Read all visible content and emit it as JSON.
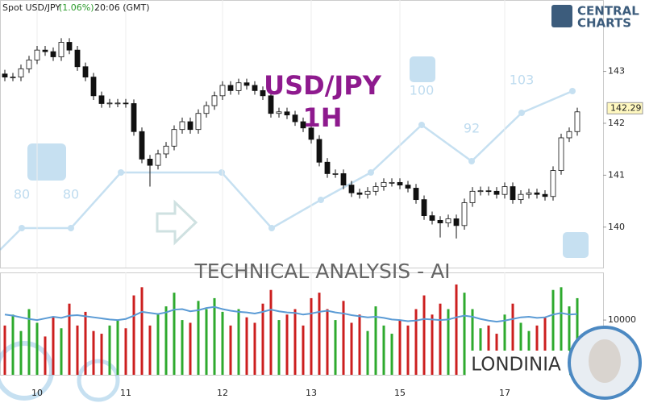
{
  "header": {
    "symbol": "Spot USD/JPY",
    "change": "(1.06%)",
    "time": "20:06 (GMT)"
  },
  "logo": {
    "line1": "CENTRAL",
    "line2": "CHARTS"
  },
  "watermark": {
    "pair": "USD/JPY",
    "timeframe": "1H",
    "caption": "TECHNICAL  ANALYSIS - AI",
    "brand": "LONDINIA",
    "numbers": [
      "80",
      "80",
      "100",
      "92",
      "103"
    ]
  },
  "chart_data": {
    "type": "candlestick",
    "open": [
      142.95,
      142.89,
      142.89,
      143.05,
      143.22,
      143.41,
      143.38,
      143.28,
      143.56,
      143.41,
      143.09,
      142.89,
      142.53,
      142.38,
      142.39,
      142.39,
      142.38,
      141.84,
      141.31,
      141.19,
      141.41,
      141.56,
      141.88,
      142.03,
      141.88,
      142.19,
      142.34,
      142.53,
      142.73,
      142.63,
      142.78,
      142.73,
      142.63,
      142.53,
      142.19,
      142.22,
      142.16,
      142.03,
      141.91,
      141.69,
      141.25,
      141.03,
      141.03,
      140.81,
      140.66,
      140.63,
      140.69,
      140.78,
      140.86,
      140.86,
      140.81,
      140.75,
      140.53,
      140.22,
      140.13,
      140.08,
      140.16,
      140.03,
      140.47,
      140.69,
      140.7,
      140.69,
      140.63,
      140.78,
      140.53,
      140.63,
      140.66,
      140.63,
      140.59,
      141.09,
      141.72,
      141.84
    ],
    "high": [
      143.03,
      142.97,
      143.13,
      143.3,
      143.49,
      143.49,
      143.46,
      143.64,
      143.64,
      143.49,
      143.17,
      142.97,
      142.61,
      142.47,
      142.47,
      142.47,
      142.46,
      141.92,
      141.39,
      141.49,
      141.64,
      141.96,
      142.11,
      142.11,
      142.27,
      142.42,
      142.61,
      142.81,
      142.81,
      142.86,
      142.86,
      142.81,
      142.71,
      142.61,
      142.3,
      142.3,
      142.24,
      142.11,
      141.99,
      141.77,
      141.33,
      141.11,
      141.11,
      140.89,
      140.74,
      140.77,
      140.86,
      140.94,
      140.94,
      140.94,
      140.89,
      140.83,
      140.61,
      140.3,
      140.21,
      140.24,
      140.24,
      140.55,
      140.77,
      140.78,
      140.78,
      140.77,
      140.86,
      140.86,
      140.71,
      140.74,
      140.74,
      140.71,
      141.17,
      141.8,
      141.92,
      142.3
    ],
    "low": [
      142.81,
      142.81,
      142.81,
      142.97,
      143.14,
      143.3,
      143.2,
      143.2,
      143.33,
      143.01,
      142.81,
      142.45,
      142.3,
      142.3,
      142.31,
      142.3,
      141.76,
      141.23,
      140.78,
      141.11,
      141.33,
      141.48,
      141.8,
      141.8,
      141.8,
      142.11,
      142.26,
      142.45,
      142.55,
      142.55,
      142.65,
      142.55,
      142.45,
      142.11,
      142.11,
      142.08,
      141.95,
      141.83,
      141.61,
      141.17,
      140.95,
      140.95,
      140.73,
      140.58,
      140.55,
      140.55,
      140.61,
      140.7,
      140.78,
      140.73,
      140.67,
      140.45,
      140.14,
      140.05,
      139.8,
      140.0,
      139.78,
      139.95,
      140.39,
      140.61,
      140.61,
      140.55,
      140.55,
      140.45,
      140.45,
      140.55,
      140.55,
      140.51,
      140.51,
      141.01,
      141.64,
      141.76
    ],
    "close": [
      142.89,
      142.89,
      143.05,
      143.22,
      143.41,
      143.38,
      143.28,
      143.56,
      143.41,
      143.09,
      142.89,
      142.53,
      142.38,
      142.39,
      142.39,
      142.38,
      141.84,
      141.31,
      141.19,
      141.41,
      141.56,
      141.88,
      142.03,
      141.88,
      142.19,
      142.34,
      142.53,
      142.73,
      142.63,
      142.78,
      142.73,
      142.63,
      142.53,
      142.19,
      142.22,
      142.16,
      142.03,
      141.91,
      141.69,
      141.25,
      141.03,
      141.03,
      140.81,
      140.66,
      140.63,
      140.69,
      140.78,
      140.86,
      140.86,
      140.81,
      140.75,
      140.53,
      140.22,
      140.13,
      140.08,
      140.16,
      140.03,
      140.47,
      140.69,
      140.7,
      140.69,
      140.63,
      140.78,
      140.53,
      140.63,
      140.66,
      140.63,
      140.59,
      141.09,
      141.72,
      141.84,
      142.22
    ],
    "volume": [
      9000,
      11000,
      8000,
      12000,
      9500,
      7000,
      10500,
      8500,
      13000,
      9000,
      11500,
      8000,
      7500,
      9000,
      10000,
      8500,
      14500,
      16000,
      9000,
      11000,
      12500,
      15000,
      10000,
      9500,
      13500,
      12000,
      14000,
      11500,
      9000,
      12000,
      10500,
      9500,
      13000,
      15500,
      10000,
      11000,
      12000,
      9000,
      14000,
      15000,
      12000,
      10000,
      13500,
      9500,
      11000,
      8000,
      12500,
      9000,
      7500,
      10000,
      9000,
      12000,
      14500,
      11000,
      13000,
      12000,
      16500,
      15000,
      12000,
      8500,
      9000,
      7500,
      11000,
      13000,
      9500,
      8000,
      9000,
      10500,
      15500,
      16000,
      12500,
      14000
    ],
    "volume_ma": [
      11000,
      10800,
      10500,
      10200,
      10000,
      10300,
      10600,
      10400,
      10800,
      10900,
      10700,
      10500,
      10300,
      10100,
      10000,
      10200,
      10800,
      11500,
      11300,
      11100,
      11400,
      11900,
      12000,
      11600,
      11800,
      12200,
      12400,
      12000,
      11700,
      11500,
      11400,
      11200,
      11500,
      11900,
      11600,
      11400,
      11300,
      11000,
      11200,
      11500,
      11700,
      11400,
      11200,
      10900,
      10700,
      10500,
      10600,
      10400,
      10100,
      10000,
      9800,
      9900,
      10200,
      10100,
      10000,
      10100,
      10500,
      10800,
      10600,
      10200,
      9900,
      9700,
      9900,
      10200,
      10500,
      10600,
      10400,
      10500,
      11000,
      11300,
      11000,
      11100
    ],
    "last_price": 142.29,
    "xlim": [
      -0.6,
      74.2
    ],
    "xticks": [
      {
        "value": 4,
        "label": "10"
      },
      {
        "value": 15,
        "label": "11"
      },
      {
        "value": 27,
        "label": "12"
      },
      {
        "value": 38,
        "label": "13"
      },
      {
        "value": 49,
        "label": "15"
      },
      {
        "value": 62,
        "label": "17"
      }
    ],
    "ylim": [
      139.22,
      144.375
    ],
    "yticks": [
      140,
      141,
      142,
      143
    ],
    "vlim": [
      0,
      18700
    ],
    "vticks": [
      10000
    ],
    "up_color": "#2eaa2e",
    "down_color": "#cc1f1f",
    "ma_color": "#5b9bd5"
  }
}
